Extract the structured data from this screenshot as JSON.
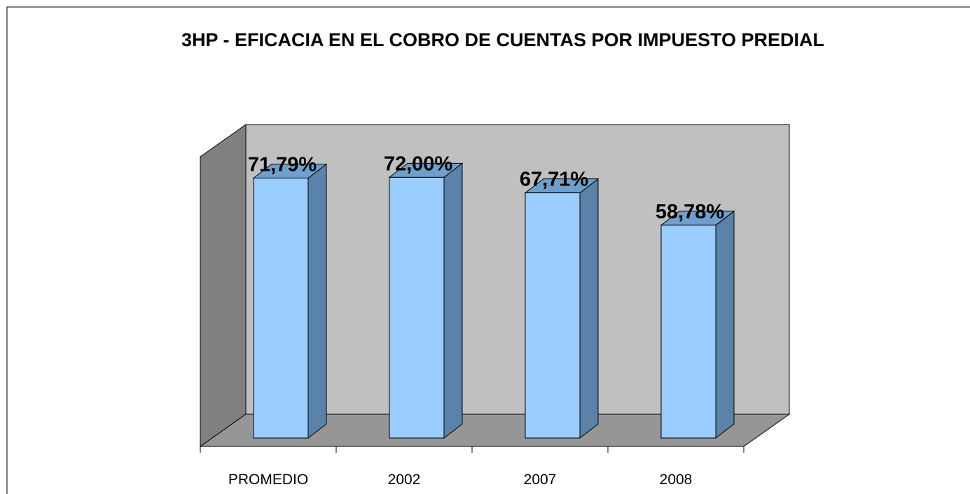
{
  "chart_data": {
    "type": "bar3d",
    "title": "3HP - EFICACIA EN EL COBRO DE CUENTAS POR IMPUESTO PREDIAL",
    "categories": [
      "PROMEDIO",
      "2002",
      "2007",
      "2008"
    ],
    "values": [
      71.79,
      72.0,
      67.71,
      58.78
    ],
    "value_labels": [
      "71,79%",
      "72,00%",
      "67,71%",
      "58,78%"
    ],
    "color": "#99ccff",
    "ylim": [
      0,
      80
    ]
  }
}
